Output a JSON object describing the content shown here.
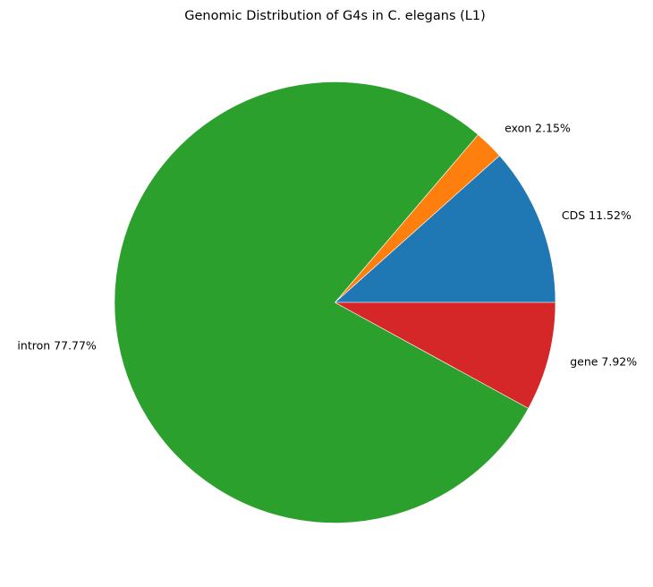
{
  "chart_data": {
    "type": "pie",
    "title": "Genomic Distribution of G4s in C. elegans (L1)",
    "slices": [
      {
        "label": "CDS",
        "value": 11.52,
        "pct_text": "11.52%",
        "color": "#1f77b4"
      },
      {
        "label": "exon",
        "value": 2.15,
        "pct_text": "2.15%",
        "color": "#ff7f0e"
      },
      {
        "label": "intron",
        "value": 77.77,
        "pct_text": "77.77%",
        "color": "#2ca02c"
      },
      {
        "label": "gene",
        "value": 7.92,
        "pct_text": "7.92%",
        "color": "#d62728"
      }
    ],
    "start_angle_deg": 0,
    "direction": "counterclockwise",
    "legend": "none"
  }
}
